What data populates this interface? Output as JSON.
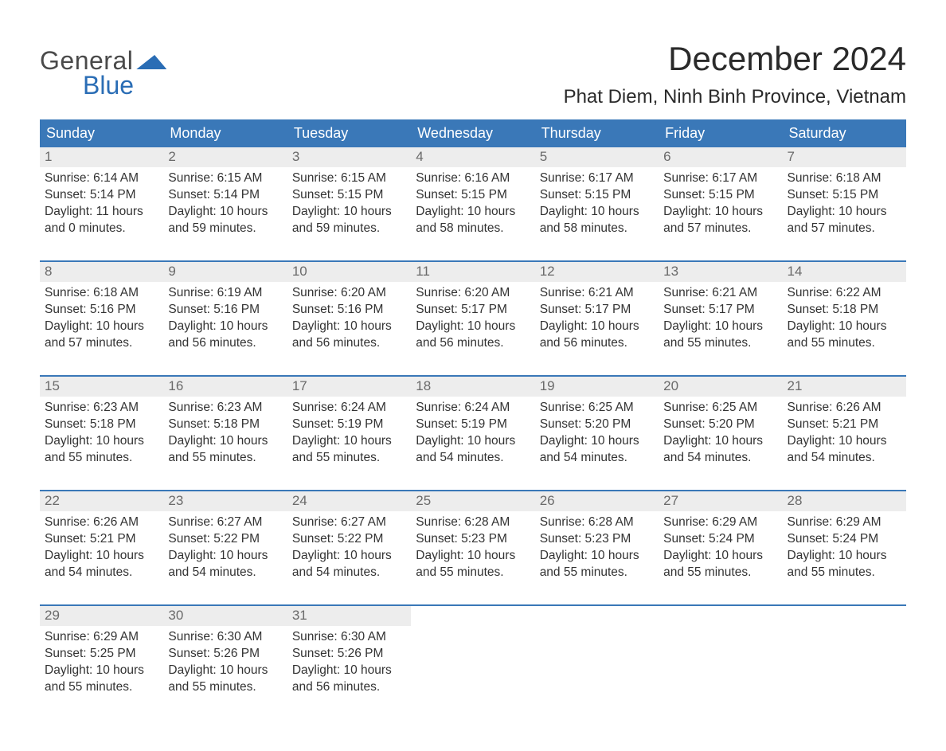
{
  "logo": {
    "text1": "General",
    "text2": "Blue"
  },
  "title": "December 2024",
  "location": "Phat Diem, Ninh Binh Province, Vietnam",
  "colors": {
    "header_bg": "#3a78b8",
    "header_text": "#ffffff",
    "daynum_bg": "#ededed",
    "daynum_text": "#6a6a6a",
    "body_text": "#333333",
    "logo_blue": "#2a6db5",
    "week_border": "#3a78b8"
  },
  "days_of_week": [
    "Sunday",
    "Monday",
    "Tuesday",
    "Wednesday",
    "Thursday",
    "Friday",
    "Saturday"
  ],
  "weeks": [
    [
      {
        "n": "1",
        "sr": "6:14 AM",
        "ss": "5:14 PM",
        "dh": "11",
        "dm": "0"
      },
      {
        "n": "2",
        "sr": "6:15 AM",
        "ss": "5:14 PM",
        "dh": "10",
        "dm": "59"
      },
      {
        "n": "3",
        "sr": "6:15 AM",
        "ss": "5:15 PM",
        "dh": "10",
        "dm": "59"
      },
      {
        "n": "4",
        "sr": "6:16 AM",
        "ss": "5:15 PM",
        "dh": "10",
        "dm": "58"
      },
      {
        "n": "5",
        "sr": "6:17 AM",
        "ss": "5:15 PM",
        "dh": "10",
        "dm": "58"
      },
      {
        "n": "6",
        "sr": "6:17 AM",
        "ss": "5:15 PM",
        "dh": "10",
        "dm": "57"
      },
      {
        "n": "7",
        "sr": "6:18 AM",
        "ss": "5:15 PM",
        "dh": "10",
        "dm": "57"
      }
    ],
    [
      {
        "n": "8",
        "sr": "6:18 AM",
        "ss": "5:16 PM",
        "dh": "10",
        "dm": "57"
      },
      {
        "n": "9",
        "sr": "6:19 AM",
        "ss": "5:16 PM",
        "dh": "10",
        "dm": "56"
      },
      {
        "n": "10",
        "sr": "6:20 AM",
        "ss": "5:16 PM",
        "dh": "10",
        "dm": "56"
      },
      {
        "n": "11",
        "sr": "6:20 AM",
        "ss": "5:17 PM",
        "dh": "10",
        "dm": "56"
      },
      {
        "n": "12",
        "sr": "6:21 AM",
        "ss": "5:17 PM",
        "dh": "10",
        "dm": "56"
      },
      {
        "n": "13",
        "sr": "6:21 AM",
        "ss": "5:17 PM",
        "dh": "10",
        "dm": "55"
      },
      {
        "n": "14",
        "sr": "6:22 AM",
        "ss": "5:18 PM",
        "dh": "10",
        "dm": "55"
      }
    ],
    [
      {
        "n": "15",
        "sr": "6:23 AM",
        "ss": "5:18 PM",
        "dh": "10",
        "dm": "55"
      },
      {
        "n": "16",
        "sr": "6:23 AM",
        "ss": "5:18 PM",
        "dh": "10",
        "dm": "55"
      },
      {
        "n": "17",
        "sr": "6:24 AM",
        "ss": "5:19 PM",
        "dh": "10",
        "dm": "55"
      },
      {
        "n": "18",
        "sr": "6:24 AM",
        "ss": "5:19 PM",
        "dh": "10",
        "dm": "54"
      },
      {
        "n": "19",
        "sr": "6:25 AM",
        "ss": "5:20 PM",
        "dh": "10",
        "dm": "54"
      },
      {
        "n": "20",
        "sr": "6:25 AM",
        "ss": "5:20 PM",
        "dh": "10",
        "dm": "54"
      },
      {
        "n": "21",
        "sr": "6:26 AM",
        "ss": "5:21 PM",
        "dh": "10",
        "dm": "54"
      }
    ],
    [
      {
        "n": "22",
        "sr": "6:26 AM",
        "ss": "5:21 PM",
        "dh": "10",
        "dm": "54"
      },
      {
        "n": "23",
        "sr": "6:27 AM",
        "ss": "5:22 PM",
        "dh": "10",
        "dm": "54"
      },
      {
        "n": "24",
        "sr": "6:27 AM",
        "ss": "5:22 PM",
        "dh": "10",
        "dm": "54"
      },
      {
        "n": "25",
        "sr": "6:28 AM",
        "ss": "5:23 PM",
        "dh": "10",
        "dm": "55"
      },
      {
        "n": "26",
        "sr": "6:28 AM",
        "ss": "5:23 PM",
        "dh": "10",
        "dm": "55"
      },
      {
        "n": "27",
        "sr": "6:29 AM",
        "ss": "5:24 PM",
        "dh": "10",
        "dm": "55"
      },
      {
        "n": "28",
        "sr": "6:29 AM",
        "ss": "5:24 PM",
        "dh": "10",
        "dm": "55"
      }
    ],
    [
      {
        "n": "29",
        "sr": "6:29 AM",
        "ss": "5:25 PM",
        "dh": "10",
        "dm": "55"
      },
      {
        "n": "30",
        "sr": "6:30 AM",
        "ss": "5:26 PM",
        "dh": "10",
        "dm": "55"
      },
      {
        "n": "31",
        "sr": "6:30 AM",
        "ss": "5:26 PM",
        "dh": "10",
        "dm": "56"
      },
      null,
      null,
      null,
      null
    ]
  ],
  "labels": {
    "sunrise": "Sunrise:",
    "sunset": "Sunset:",
    "daylight": "Daylight:",
    "hours": "hours",
    "and": "and",
    "minutes": "minutes."
  }
}
